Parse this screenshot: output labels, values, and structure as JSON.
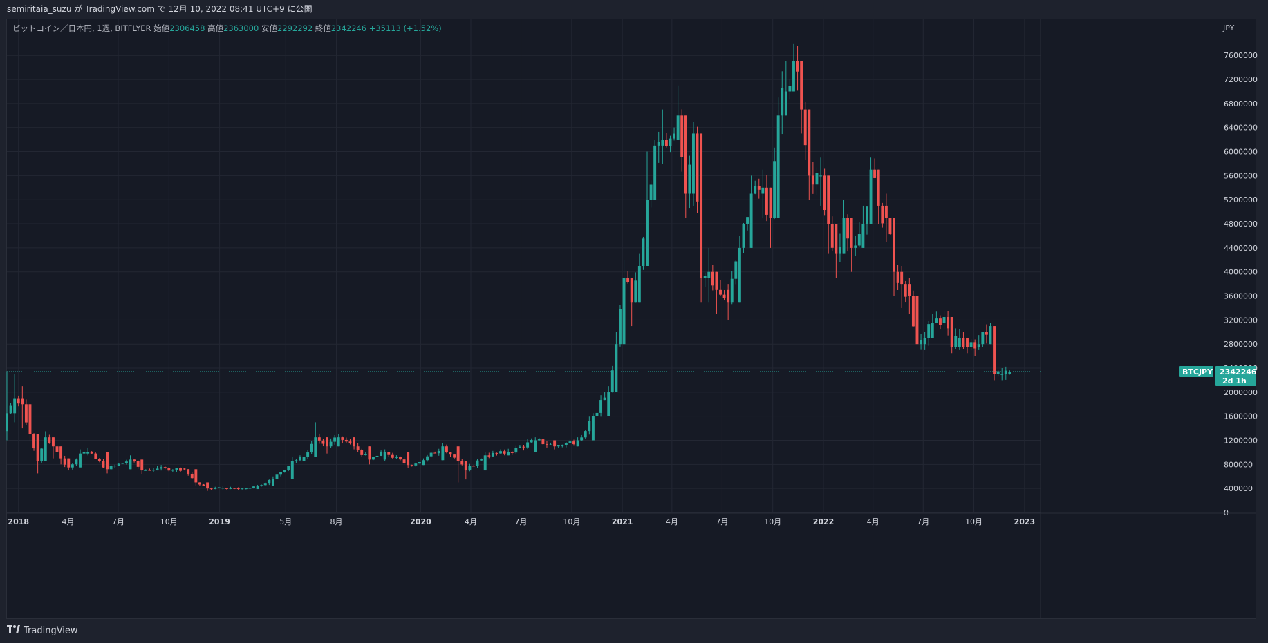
{
  "header": {
    "published_text": "semiritaia_suzu が TradingView.com で 12月 10, 2022 08:41 UTC+9 に公開"
  },
  "legend": {
    "symbol": "ビットコイン／日本円, 1週, BITFLYER",
    "open_label": "始値",
    "open": "2306458",
    "high_label": "高値",
    "high": "2363000",
    "low_label": "安値",
    "low": "2292292",
    "close_label": "終値",
    "close": "2342246",
    "change": "+35113 (+1.52%)"
  },
  "price_tag": {
    "symbol": "BTCJPY",
    "price": "2342246",
    "countdown": "2d 1h"
  },
  "footer": {
    "brand": "TradingView",
    "logo_icon": "tradingview-logo-icon"
  },
  "colors": {
    "up": "#26a69a",
    "down": "#ef5350",
    "background": "#161a25",
    "grid": "#232733",
    "axis_text": "#d1d4dc"
  },
  "chart_data": {
    "type": "candlestick",
    "title": "ビットコイン／日本円, 1週, BITFLYER",
    "currency": "JPY",
    "y_unit": "JPY",
    "ylim": [
      0,
      8200000
    ],
    "y_ticks": [
      0,
      400000,
      800000,
      1200000,
      1600000,
      2000000,
      2400000,
      2800000,
      3200000,
      3600000,
      4000000,
      4400000,
      4800000,
      5200000,
      5600000,
      6000000,
      6400000,
      6800000,
      7200000,
      7600000
    ],
    "x_ticks": [
      {
        "label": "2018",
        "date": "2018-01-01",
        "bold": true
      },
      {
        "label": "4月",
        "date": "2018-04-01"
      },
      {
        "label": "7月",
        "date": "2018-07-01"
      },
      {
        "label": "10月",
        "date": "2018-10-01"
      },
      {
        "label": "2019",
        "date": "2019-01-01",
        "bold": true
      },
      {
        "label": "5月",
        "date": "2019-05-01"
      },
      {
        "label": "8月",
        "date": "2019-08-01"
      },
      {
        "label": "2020",
        "date": "2020-01-01",
        "bold": true
      },
      {
        "label": "4月",
        "date": "2020-04-01"
      },
      {
        "label": "7月",
        "date": "2020-07-01"
      },
      {
        "label": "10月",
        "date": "2020-10-01"
      },
      {
        "label": "2021",
        "date": "2021-01-01",
        "bold": true
      },
      {
        "label": "4月",
        "date": "2021-04-01"
      },
      {
        "label": "7月",
        "date": "2021-07-01"
      },
      {
        "label": "10月",
        "date": "2021-10-01"
      },
      {
        "label": "2022",
        "date": "2022-01-01",
        "bold": true
      },
      {
        "label": "4月",
        "date": "2022-04-01"
      },
      {
        "label": "7月",
        "date": "2022-07-01"
      },
      {
        "label": "10月",
        "date": "2022-10-01"
      },
      {
        "label": "2023",
        "date": "2023-01-01",
        "bold": true
      }
    ],
    "x_start": "2017-12-11",
    "x_end": "2023-01-30",
    "interval": "1W",
    "last_price": 2342246,
    "anchors": [
      [
        "2017-12-11",
        1650000,
        2350000,
        1200000
      ],
      [
        "2017-12-25",
        1900000,
        2300000,
        1500000
      ],
      [
        "2018-01-08",
        1800000,
        2100000,
        1400000
      ],
      [
        "2018-01-22",
        1300000,
        1600000,
        1200000
      ],
      [
        "2018-02-05",
        850000,
        1250000,
        650000
      ],
      [
        "2018-02-19",
        1250000,
        1350000,
        1000000
      ],
      [
        "2018-03-05",
        1100000,
        1250000,
        900000
      ],
      [
        "2018-03-19",
        900000,
        1050000,
        800000
      ],
      [
        "2018-04-02",
        750000,
        850000,
        700000
      ],
      [
        "2018-04-23",
        980000,
        1050000,
        900000
      ],
      [
        "2018-05-07",
        1000000,
        1080000,
        950000
      ],
      [
        "2018-06-11",
        720000,
        800000,
        650000
      ],
      [
        "2018-07-23",
        880000,
        950000,
        800000
      ],
      [
        "2018-08-13",
        700000,
        760000,
        640000
      ],
      [
        "2018-09-10",
        730000,
        780000,
        700000
      ],
      [
        "2018-10-29",
        720000,
        740000,
        700000
      ],
      [
        "2018-11-19",
        500000,
        580000,
        450000
      ],
      [
        "2018-12-10",
        400000,
        450000,
        360000
      ],
      [
        "2019-01-07",
        410000,
        440000,
        380000
      ],
      [
        "2019-02-04",
        390000,
        420000,
        370000
      ],
      [
        "2019-03-11",
        440000,
        460000,
        420000
      ],
      [
        "2019-04-08",
        560000,
        600000,
        500000
      ],
      [
        "2019-05-13",
        850000,
        920000,
        700000
      ],
      [
        "2019-06-03",
        920000,
        1000000,
        850000
      ],
      [
        "2019-06-24",
        1250000,
        1500000,
        1100000
      ],
      [
        "2019-07-15",
        1100000,
        1200000,
        980000
      ],
      [
        "2019-08-05",
        1250000,
        1300000,
        1100000
      ],
      [
        "2019-09-02",
        1100000,
        1150000,
        1050000
      ],
      [
        "2019-09-30",
        880000,
        950000,
        800000
      ],
      [
        "2019-10-28",
        1000000,
        1050000,
        850000
      ],
      [
        "2019-12-09",
        790000,
        820000,
        740000
      ],
      [
        "2020-01-06",
        870000,
        900000,
        790000
      ],
      [
        "2020-02-10",
        1100000,
        1150000,
        1050000
      ],
      [
        "2020-03-09",
        850000,
        950000,
        500000
      ],
      [
        "2020-03-23",
        700000,
        750000,
        550000
      ],
      [
        "2020-04-27",
        950000,
        1000000,
        800000
      ],
      [
        "2020-06-08",
        1000000,
        1060000,
        950000
      ],
      [
        "2020-07-27",
        1200000,
        1250000,
        1100000
      ],
      [
        "2020-08-31",
        1100000,
        1200000,
        1050000
      ],
      [
        "2020-10-12",
        1200000,
        1250000,
        1150000
      ],
      [
        "2020-11-09",
        1600000,
        1650000,
        1500000
      ],
      [
        "2020-12-07",
        2000000,
        2100000,
        1950000
      ],
      [
        "2020-12-21",
        2800000,
        3000000,
        2300000
      ],
      [
        "2021-01-04",
        3900000,
        4200000,
        3300000
      ],
      [
        "2021-01-18",
        3500000,
        3700000,
        3100000
      ],
      [
        "2021-02-01",
        4100000,
        4300000,
        3600000
      ],
      [
        "2021-02-15",
        5200000,
        6000000,
        4400000
      ],
      [
        "2021-03-01",
        6100000,
        6200000,
        5200000
      ],
      [
        "2021-03-15",
        6200000,
        6700000,
        5800000
      ],
      [
        "2021-04-12",
        6600000,
        7100000,
        6300000
      ],
      [
        "2021-04-26",
        5300000,
        5800000,
        4900000
      ],
      [
        "2021-05-10",
        6300000,
        6500000,
        5100000
      ],
      [
        "2021-05-24",
        3900000,
        4700000,
        3500000
      ],
      [
        "2021-06-07",
        4000000,
        4400000,
        3500000
      ],
      [
        "2021-06-21",
        3700000,
        4000000,
        3300000
      ],
      [
        "2021-07-12",
        3500000,
        3800000,
        3200000
      ],
      [
        "2021-08-02",
        4400000,
        4600000,
        4000000
      ],
      [
        "2021-08-23",
        5300000,
        5600000,
        4800000
      ],
      [
        "2021-09-13",
        5400000,
        5700000,
        4900000
      ],
      [
        "2021-09-27",
        4900000,
        5200000,
        4400000
      ],
      [
        "2021-10-11",
        6600000,
        6900000,
        5900000
      ],
      [
        "2021-10-25",
        7000000,
        7500000,
        6600000
      ],
      [
        "2021-11-08",
        7500000,
        7800000,
        7000000
      ],
      [
        "2021-11-22",
        6700000,
        7000000,
        6300000
      ],
      [
        "2021-12-06",
        5600000,
        6100000,
        5200000
      ],
      [
        "2021-12-27",
        5600000,
        5900000,
        5100000
      ],
      [
        "2022-01-10",
        4800000,
        5300000,
        4300000
      ],
      [
        "2022-01-24",
        4300000,
        4800000,
        3900000
      ],
      [
        "2022-02-07",
        4900000,
        5200000,
        4500000
      ],
      [
        "2022-02-21",
        4400000,
        4700000,
        4000000
      ],
      [
        "2022-03-14",
        4800000,
        5100000,
        4400000
      ],
      [
        "2022-03-28",
        5700000,
        5900000,
        5100000
      ],
      [
        "2022-04-11",
        5100000,
        5400000,
        4800000
      ],
      [
        "2022-04-25",
        4900000,
        5300000,
        4500000
      ],
      [
        "2022-05-09",
        4000000,
        4400000,
        3600000
      ],
      [
        "2022-05-23",
        3800000,
        4100000,
        3400000
      ],
      [
        "2022-06-06",
        3600000,
        3900000,
        3300000
      ],
      [
        "2022-06-20",
        2800000,
        3100000,
        2400000
      ],
      [
        "2022-07-04",
        2900000,
        3000000,
        2700000
      ],
      [
        "2022-07-18",
        3150000,
        3300000,
        2900000
      ],
      [
        "2022-08-08",
        3250000,
        3350000,
        3050000
      ],
      [
        "2022-08-22",
        2750000,
        3000000,
        2650000
      ],
      [
        "2022-09-05",
        2900000,
        3050000,
        2700000
      ],
      [
        "2022-09-19",
        2750000,
        2900000,
        2650000
      ],
      [
        "2022-10-10",
        2800000,
        2950000,
        2700000
      ],
      [
        "2022-10-31",
        3100000,
        3150000,
        2950000
      ],
      [
        "2022-11-07",
        2300000,
        3100000,
        2200000
      ],
      [
        "2022-11-21",
        2300000,
        2400000,
        2200000
      ],
      [
        "2022-12-05",
        2342246,
        2363000,
        2292292
      ]
    ]
  }
}
